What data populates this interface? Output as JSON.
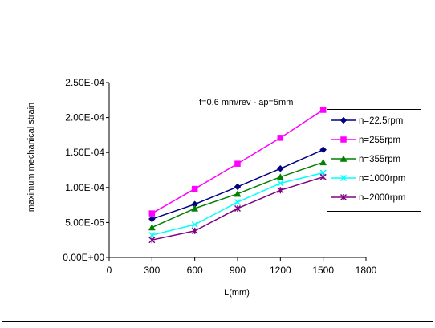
{
  "chart_data": {
    "type": "line",
    "title": "",
    "annotation": "f=0.6 mm/rev - ap=5mm",
    "xlabel": "L(mm)",
    "ylabel": "maximum mechanical strain",
    "xlim": [
      0,
      1800
    ],
    "ylim": [
      0,
      0.00025
    ],
    "x_ticks": [
      0,
      300,
      600,
      900,
      1200,
      1500,
      1800
    ],
    "x_tick_labels": [
      "0",
      "300",
      "600",
      "900",
      "1200",
      "1500",
      "1800"
    ],
    "y_ticks": [
      0,
      5e-05,
      0.0001,
      0.00015,
      0.0002,
      0.00025
    ],
    "y_tick_labels": [
      "0.00E+00",
      "5.00E-05",
      "1.00E-04",
      "1.50E-04",
      "2.00E-04",
      "2.50E-04"
    ],
    "grid": false,
    "legend_position": "right",
    "x": [
      300,
      600,
      900,
      1200,
      1500
    ],
    "series": [
      {
        "name": "n=22.5rpm",
        "values": [
          5.5e-05,
          7.6e-05,
          0.000101,
          0.000127,
          0.000154
        ],
        "color": "#000080",
        "marker": "diamond"
      },
      {
        "name": "n=255rpm",
        "values": [
          6.3e-05,
          9.8e-05,
          0.000134,
          0.000171,
          0.000211
        ],
        "color": "#ff00ff",
        "marker": "square"
      },
      {
        "name": "n=355rpm",
        "values": [
          4.3e-05,
          7e-05,
          9.1e-05,
          0.000115,
          0.000136
        ],
        "color": "#008000",
        "marker": "triangle"
      },
      {
        "name": "n=1000rpm",
        "values": [
          3.2e-05,
          4.7e-05,
          7.9e-05,
          0.000106,
          0.000121
        ],
        "color": "#00ffff",
        "marker": "x"
      },
      {
        "name": "n=2000rpm",
        "values": [
          2.5e-05,
          3.8e-05,
          7e-05,
          9.6e-05,
          0.000115
        ],
        "color": "#800080",
        "marker": "asterisk"
      }
    ]
  }
}
